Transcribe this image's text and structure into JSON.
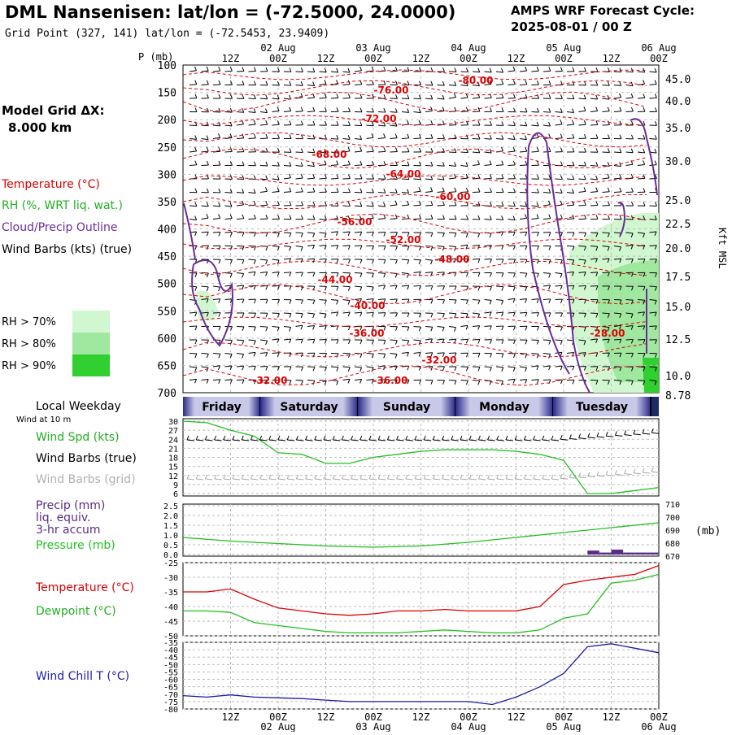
{
  "header": {
    "title": "DML Nansenisen:  lat/lon = (-72.5000, 24.0000)",
    "subtitle": "Grid Point (327, 141) lat/lon = (-72.5453, 23.9409)",
    "cycle_title": "AMPS WRF Forecast Cycle:",
    "cycle_value": "2025-08-01 / 00  Z"
  },
  "left_legend": {
    "model_grid_label": "Model Grid ΔX:",
    "model_grid_value": "8.000 km",
    "temperature": "Temperature (°C)",
    "rh": "RH (%, WRT liq. wat.)",
    "cloud": "Cloud/Precip Outline",
    "wind": "Wind Barbs (kts) (true)",
    "rh70": "RH > 70%",
    "rh80": "RH > 80%",
    "rh90": "RH > 90%"
  },
  "colors": {
    "temperature": "#dd0000",
    "rh_text": "#20b020",
    "cloud": "#6a2c99",
    "rh70": "#d0f7d0",
    "rh80": "#a0e8a0",
    "rh90": "#30d030",
    "pressure_line": "#22c022",
    "wind_chill": "#1a1aaa",
    "precip": "#5a2c8a"
  },
  "time_axis": {
    "hour_labels": [
      "12Z",
      "00Z",
      "12Z",
      "00Z",
      "12Z",
      "00Z",
      "12Z",
      "00Z",
      "12Z",
      "00Z"
    ],
    "date_labels": [
      "02 Aug",
      "03 Aug",
      "04 Aug",
      "05 Aug",
      "06 Aug"
    ]
  },
  "sounding": {
    "ylabel": "P (mb)",
    "pressure_ticks": [
      "100",
      "150",
      "200",
      "250",
      "300",
      "350",
      "400",
      "450",
      "500",
      "550",
      "600",
      "650",
      "700"
    ],
    "height_ticks": [
      "45.0",
      "40.0",
      "35.0",
      "30.0",
      "25.0",
      "22.5",
      "20.0",
      "17.5",
      "15.0",
      "12.5",
      "10.0",
      "8.78"
    ],
    "height_axis_label": "Kft MSL",
    "temp_labels": [
      "-80.00",
      "-76.00",
      "-72.00",
      "-68.00",
      "-64.00",
      "-60.00",
      "-56.00",
      "-52.00",
      "-48.00",
      "-44.00",
      "-40.00",
      "-36.00",
      "-32.00",
      "-28.00",
      "-32.00",
      "-36.00"
    ]
  },
  "weekday_bar": {
    "label": "Local Weekday",
    "sublabel": "Wind at 10 m",
    "days": [
      "Friday",
      "Saturday",
      "Sunday",
      "Monday",
      "Tuesday"
    ]
  },
  "panel_wind": {
    "label_speed": "Wind Spd (kts)",
    "label_true": "Wind Barbs (true)",
    "label_grid": "Wind Barbs (grid)",
    "ticks": [
      "30",
      "27",
      "24",
      "21",
      "18",
      "15",
      "12",
      "9",
      "6"
    ]
  },
  "panel_precip": {
    "label1": "Precip (mm)",
    "label2": "liq. equiv.",
    "label3": "3-hr accum",
    "label4": "Pressure (mb)",
    "left_ticks": [
      "2.5",
      "2.0",
      "1.5",
      "1.0",
      "0.5",
      "0.0"
    ],
    "right_ticks": [
      "710",
      "700",
      "690",
      "680",
      "670"
    ],
    "right_unit": "(mb)"
  },
  "panel_temp": {
    "label_temp": "Temperature (°C)",
    "label_dew": "Dewpoint (°C)",
    "ticks": [
      "-25",
      "-30",
      "-35",
      "-40",
      "-45",
      "-50"
    ]
  },
  "panel_chill": {
    "label": "Wind Chill T (°C)",
    "ticks": [
      "-35",
      "-40",
      "-45",
      "-50",
      "-55",
      "-60",
      "-65",
      "-70",
      "-75",
      "-80"
    ]
  },
  "chart_data": [
    {
      "type": "line",
      "title": "Wind Spd (kts)",
      "x": [
        0,
        6,
        12,
        18,
        24,
        30,
        36,
        42,
        48,
        54,
        60,
        66,
        72,
        78,
        84,
        90,
        96,
        102,
        108,
        114,
        120
      ],
      "series": [
        {
          "name": "Wind Spd (kts)",
          "values": [
            30,
            29.5,
            27,
            25,
            19.5,
            19,
            16,
            16,
            18,
            19,
            20,
            20.5,
            20.5,
            20.5,
            20,
            19,
            17,
            6,
            6,
            7,
            8
          ]
        }
      ],
      "ylim": [
        6,
        30
      ]
    },
    {
      "type": "line",
      "title": "Pressure (mb)",
      "x": [
        0,
        12,
        24,
        36,
        48,
        60,
        72,
        84,
        96,
        108,
        120
      ],
      "series": [
        {
          "name": "Pressure (mb)",
          "values": [
            684,
            681,
            679,
            677,
            676,
            677,
            680,
            684,
            688,
            692,
            696
          ]
        }
      ],
      "ylim": [
        670,
        710
      ]
    },
    {
      "type": "bar",
      "title": "Precip (mm)",
      "categories": [
        "102",
        "105",
        "108",
        "111",
        "114",
        "117"
      ],
      "values": [
        0.2,
        0.1,
        0.25,
        0.1,
        0.1,
        0.1
      ],
      "ylim": [
        0,
        2.5
      ]
    },
    {
      "type": "line",
      "title": "Temperature / Dewpoint (°C)",
      "x": [
        0,
        6,
        12,
        18,
        24,
        30,
        36,
        42,
        48,
        54,
        60,
        66,
        72,
        78,
        84,
        90,
        96,
        102,
        108,
        114,
        120
      ],
      "series": [
        {
          "name": "Temperature (°C)",
          "values": [
            -35,
            -35,
            -34,
            -37.5,
            -40.5,
            -41.5,
            -42.5,
            -43,
            -42.5,
            -41.5,
            -41.5,
            -41,
            -41.5,
            -41.5,
            -41.5,
            -40,
            -32.5,
            -31,
            -30,
            -29,
            -26
          ]
        },
        {
          "name": "Dewpoint (°C)",
          "values": [
            -41.5,
            -41.5,
            -42,
            -45.5,
            -46.5,
            -47.5,
            -48.5,
            -49,
            -49,
            -49,
            -48.5,
            -48,
            -48.5,
            -49,
            -49,
            -48,
            -44,
            -42.5,
            -32,
            -31,
            -29
          ]
        }
      ],
      "ylim": [
        -50,
        -25
      ]
    },
    {
      "type": "line",
      "title": "Wind Chill T (°C)",
      "x": [
        0,
        6,
        12,
        18,
        24,
        30,
        36,
        42,
        48,
        54,
        60,
        66,
        72,
        78,
        84,
        90,
        96,
        102,
        108,
        114,
        120
      ],
      "series": [
        {
          "name": "Wind Chill T (°C)",
          "values": [
            -71,
            -72,
            -70.5,
            -72,
            -72.5,
            -73,
            -74,
            -75,
            -75,
            -75,
            -75,
            -75,
            -75,
            -77,
            -72,
            -65,
            -56,
            -38,
            -36,
            -39,
            -42
          ]
        }
      ],
      "ylim": [
        -80,
        -35
      ]
    }
  ]
}
